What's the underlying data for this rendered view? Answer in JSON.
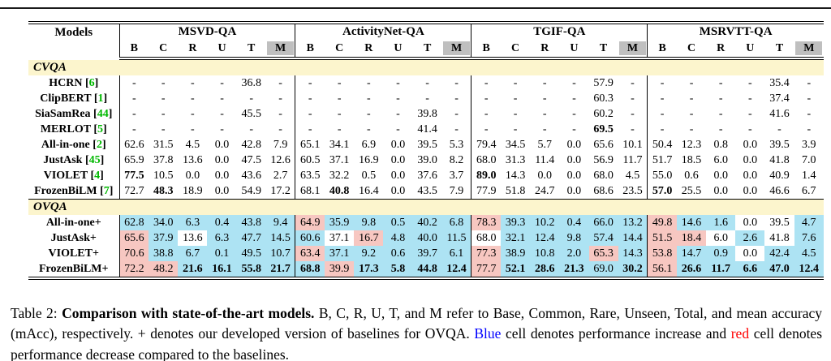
{
  "colors": {
    "section_band": "#FCF5CD",
    "increase_cell": "#ADE3F3",
    "decrease_cell": "#F7C7C1",
    "metric_m_header": "#BFBFBF",
    "citation": "#00B800",
    "blue_text": "#0000FF",
    "red_text": "#FF0000"
  },
  "table": {
    "header": {
      "models_label": "Models",
      "groups": [
        "MSVD-QA",
        "ActivityNet-QA",
        "TGIF-QA",
        "MSRVTT-QA"
      ],
      "metrics": [
        "B",
        "C",
        "R",
        "U",
        "T",
        "M"
      ],
      "highlighted_metric": "M"
    },
    "cell_encoding": "value|flags where b = bold best score, i = blue cell (increase vs baseline), d = red cell (decrease vs baseline)",
    "sections": [
      {
        "label": "CVQA",
        "rows": [
          {
            "model": "HCRN",
            "cite": "6",
            "cells": [
              "-",
              "-",
              "-",
              "-",
              "36.8",
              "-",
              "-",
              "-",
              "-",
              "-",
              "-",
              "-",
              "-",
              "-",
              "-",
              "-",
              "57.9",
              "-",
              "-",
              "-",
              "-",
              "-",
              "35.4",
              "-"
            ]
          },
          {
            "model": "ClipBERT",
            "cite": "1",
            "cells": [
              "-",
              "-",
              "-",
              "-",
              "-",
              "-",
              "-",
              "-",
              "-",
              "-",
              "-",
              "-",
              "-",
              "-",
              "-",
              "-",
              "60.3",
              "-",
              "-",
              "-",
              "-",
              "-",
              "37.4",
              "-"
            ]
          },
          {
            "model": "SiaSamRea",
            "cite": "44",
            "cells": [
              "-",
              "-",
              "-",
              "-",
              "45.5",
              "-",
              "-",
              "-",
              "-",
              "-",
              "39.8",
              "-",
              "-",
              "-",
              "-",
              "-",
              "60.2",
              "-",
              "-",
              "-",
              "-",
              "-",
              "41.6",
              "-"
            ]
          },
          {
            "model": "MERLOT",
            "cite": "5",
            "cells": [
              "-",
              "-",
              "-",
              "-",
              "-",
              "-",
              "-",
              "-",
              "-",
              "-",
              "41.4",
              "-",
              "-",
              "-",
              "-",
              "-",
              "69.5|b",
              "-",
              "-",
              "-",
              "-",
              "-",
              "-",
              "-"
            ]
          },
          {
            "model": "All-in-one",
            "cite": "2",
            "cells": [
              "62.6",
              "31.5",
              "4.5",
              "0.0",
              "42.8",
              "7.9",
              "65.1",
              "34.1",
              "6.9",
              "0.0",
              "39.5",
              "5.3",
              "79.4",
              "34.5",
              "5.7",
              "0.0",
              "65.6",
              "10.1",
              "50.4",
              "12.3",
              "0.8",
              "0.0",
              "39.5",
              "3.9"
            ]
          },
          {
            "model": "JustAsk",
            "cite": "45",
            "cells": [
              "65.9",
              "37.8",
              "13.6",
              "0.0",
              "47.5",
              "12.6",
              "60.5",
              "37.1",
              "16.9",
              "0.0",
              "39.0",
              "8.2",
              "68.0",
              "31.3",
              "11.4",
              "0.0",
              "56.9",
              "11.7",
              "51.7",
              "18.5",
              "6.0",
              "0.0",
              "41.8",
              "7.0"
            ]
          },
          {
            "model": "VIOLET",
            "cite": "4",
            "cells": [
              "77.5|b",
              "10.5",
              "0.0",
              "0.0",
              "43.6",
              "2.7",
              "63.5",
              "32.2",
              "0.5",
              "0.0",
              "37.6",
              "3.7",
              "89.0|b",
              "14.3",
              "0.0",
              "0.0",
              "68.0",
              "4.5",
              "55.0",
              "0.6",
              "0.0",
              "0.0",
              "40.9",
              "1.4"
            ]
          },
          {
            "model": "FrozenBiLM",
            "cite": "7",
            "cells": [
              "72.7",
              "48.3|b",
              "18.9",
              "0.0",
              "54.9",
              "17.2",
              "68.1",
              "40.8|b",
              "16.4",
              "0.0",
              "43.5",
              "7.9",
              "77.9",
              "51.8",
              "24.7",
              "0.0",
              "68.6",
              "23.5",
              "57.0|b",
              "25.5",
              "0.0",
              "0.0",
              "46.6",
              "6.7"
            ]
          }
        ]
      },
      {
        "label": "OVQA",
        "rows": [
          {
            "model": "All-in-one+",
            "cite": null,
            "cells": [
              "62.8|i",
              "34.0|i",
              "6.3|i",
              "0.4|i",
              "43.8|i",
              "9.4|i",
              "64.9|d",
              "35.9|i",
              "9.8|i",
              "0.5|i",
              "40.2|i",
              "6.8|i",
              "78.3|d",
              "39.3|i",
              "10.2|i",
              "0.4|i",
              "66.0|i",
              "13.2|i",
              "49.8|d",
              "14.6|i",
              "1.6|i",
              "0.0",
              "39.5",
              "4.7|i"
            ]
          },
          {
            "model": "JustAsk+",
            "cite": null,
            "cells": [
              "65.6|d",
              "37.9|i",
              "13.6",
              "6.3|i",
              "47.7|i",
              "14.5|i",
              "60.6|i",
              "37.1",
              "16.7|d",
              "4.8|i",
              "40.0|i",
              "11.5|i",
              "68.0",
              "32.1|i",
              "12.4|i",
              "9.8|i",
              "57.4|i",
              "14.4|i",
              "51.5|d",
              "18.4|d",
              "6.0",
              "2.6|i",
              "41.8",
              "7.6|i"
            ]
          },
          {
            "model": "VIOLET+",
            "cite": null,
            "cells": [
              "70.6|d",
              "38.8|i",
              "6.7|i",
              "0.1|i",
              "49.5|i",
              "10.7|i",
              "63.4|d",
              "37.1|i",
              "9.2|i",
              "0.6|i",
              "39.7|i",
              "6.1|i",
              "77.3|d",
              "38.9|i",
              "10.8|i",
              "2.0|i",
              "65.3|d",
              "14.3|i",
              "53.8|d",
              "14.7|i",
              "0.9|i",
              "0.0",
              "42.4|i",
              "4.5|i"
            ]
          },
          {
            "model": "FrozenBiLM+",
            "cite": null,
            "cells": [
              "72.2|d",
              "48.2|d",
              "21.6|ib",
              "16.1|ib",
              "55.8|ib",
              "21.7|ib",
              "68.8|ib",
              "39.9|d",
              "17.3|ib",
              "5.8|ib",
              "44.8|ib",
              "12.4|ib",
              "77.7|d",
              "52.1|ib",
              "28.6|ib",
              "21.3|ib",
              "69.0|i",
              "30.2|ib",
              "56.1|d",
              "26.6|ib",
              "11.7|ib",
              "6.6|ib",
              "47.0|ib",
              "12.4|ib"
            ]
          }
        ]
      }
    ]
  },
  "caption": {
    "segments": [
      {
        "text": "Table 2: ",
        "style": "normal"
      },
      {
        "text": "Comparison with state-of-the-art models. ",
        "style": "bold"
      },
      {
        "text": "B, C, R, U, T, and M refer to Base, Common, Rare, Unseen, Total, and mean accuracy (mAcc), respectively. + denotes our developed version of baselines for OVQA. ",
        "style": "normal"
      },
      {
        "text": "Blue",
        "style": "blue"
      },
      {
        "text": " cell denotes performance increase and ",
        "style": "normal"
      },
      {
        "text": "red",
        "style": "red"
      },
      {
        "text": " cell denotes performance decrease compared to the baselines.",
        "style": "normal"
      }
    ]
  }
}
